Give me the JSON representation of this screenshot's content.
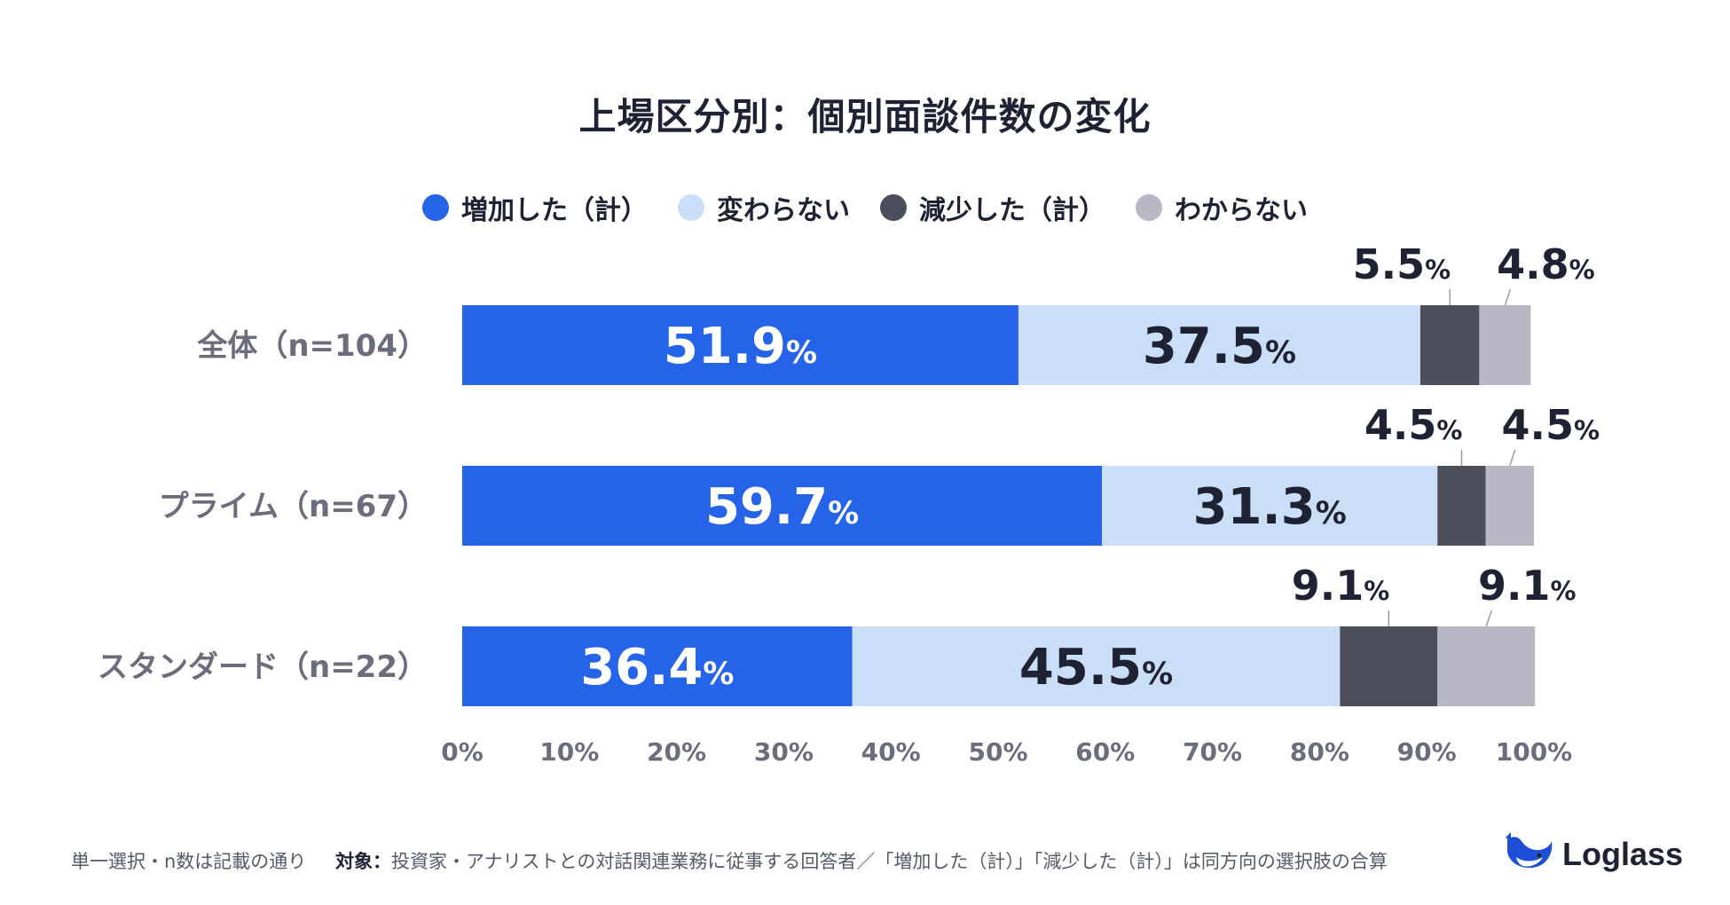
{
  "chart_data": {
    "type": "bar",
    "orientation": "horizontal",
    "stacked": true,
    "title": "上場区分別：個別面談件数の変化",
    "categories": [
      "全体（n=104）",
      "プライム（n=67）",
      "スタンダード（n=22）"
    ],
    "series": [
      {
        "name": "増加した（計）",
        "color": "#2563e8",
        "values": [
          51.9,
          59.7,
          36.4
        ]
      },
      {
        "name": "変わらない",
        "color": "#cadef7",
        "values": [
          37.5,
          31.3,
          45.5
        ]
      },
      {
        "name": "減少した（計）",
        "color": "#4d4e5b",
        "values": [
          5.5,
          4.5,
          9.1
        ]
      },
      {
        "name": "わからない",
        "color": "#b7b8c4",
        "values": [
          4.8,
          4.5,
          9.1
        ]
      }
    ],
    "value_suffix": "%",
    "xlim": [
      0,
      100
    ],
    "xticks": [
      "0%",
      "10%",
      "20%",
      "30%",
      "40%",
      "50%",
      "60%",
      "70%",
      "80%",
      "90%",
      "100%"
    ],
    "grid": false,
    "legend_position": "top"
  },
  "footnote": {
    "selection": "単一選択・n数は記載の通り",
    "target_label": "対象：",
    "target_text": "投資家・アナリストとの対話関連業務に従事する回答者／「増加した（計）」「減少した（計）」は同方向の選択肢の合算"
  },
  "brand": {
    "name": "Loglass",
    "icon": "whale-logo-icon",
    "color": "#1d4fd6"
  }
}
